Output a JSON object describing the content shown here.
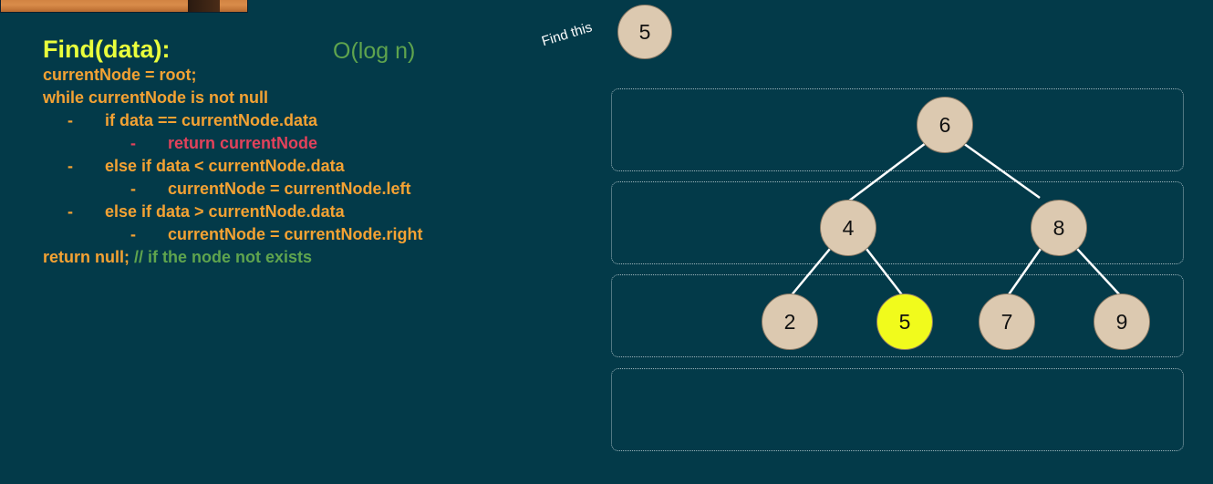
{
  "pseudocode": {
    "title": "Find(data):",
    "complexity": "O(log n)",
    "lines": {
      "l1": "currentNode = root;",
      "l2": "while currentNode is not null",
      "l3": "if data == currentNode.data",
      "l4": "return currentNode",
      "l5": "else if data < currentNode.data",
      "l6": "currentNode = currentNode.left",
      "l7": "else if data > currentNode.data",
      "l8": "currentNode = currentNode.right",
      "l9_code": "return null;",
      "l9_comment": "// if the node not exists"
    },
    "bullet": "-"
  },
  "search": {
    "label": "Find this",
    "target": "5"
  },
  "tree": {
    "highlighted": "5",
    "nodes": {
      "root": "6",
      "left": "4",
      "right": "8",
      "left_left": "2",
      "left_right": "5",
      "right_left": "7",
      "right_right": "9"
    },
    "colors": {
      "node_fill": "#dcc9b0",
      "highlight_fill": "#f1fb1c",
      "edge": "#ffffff"
    }
  },
  "colors": {
    "background": "#033a49",
    "title": "#e9ff3c",
    "code": "#f4a233",
    "return_line": "#e2425b",
    "comment": "#5fa44e"
  }
}
